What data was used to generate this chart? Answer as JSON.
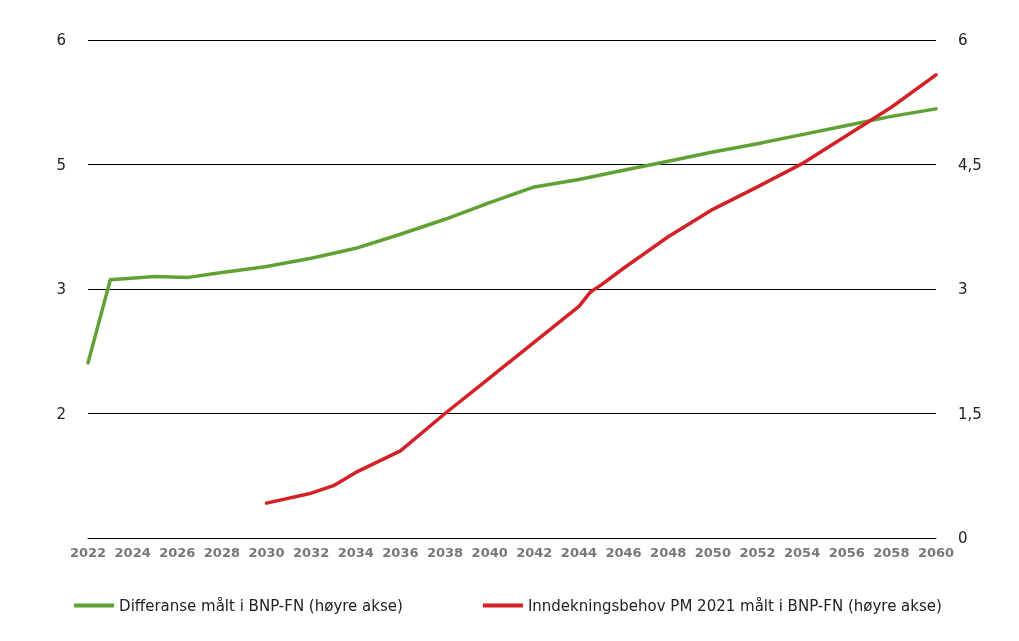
{
  "chart_data": {
    "type": "line",
    "xlim": [
      2022,
      2060
    ],
    "xticks": [
      2022,
      2024,
      2026,
      2028,
      2030,
      2032,
      2034,
      2036,
      2038,
      2040,
      2042,
      2044,
      2046,
      2048,
      2050,
      2052,
      2054,
      2056,
      2058,
      2060
    ],
    "ylim": [
      0,
      6
    ],
    "yticks": [
      {
        "value": 0,
        "label": null
      },
      {
        "value": 1.5,
        "label": "2"
      },
      {
        "value": 3,
        "label": "3"
      },
      {
        "value": 4.5,
        "label": "5"
      },
      {
        "value": 6,
        "label": "6"
      }
    ],
    "y2lim": [
      0,
      6
    ],
    "y2ticks": [
      {
        "value": 0,
        "label": "0"
      },
      {
        "value": 1.5,
        "label": "1,5"
      },
      {
        "value": 3,
        "label": "3"
      },
      {
        "value": 4.5,
        "label": "4,5"
      },
      {
        "value": 6,
        "label": "6"
      }
    ],
    "grid": "y",
    "legend": "bottom",
    "marker": "none",
    "line_style": "solid",
    "series": [
      {
        "name": "Differanse målt i BNP-FN (høyre akse)",
        "color": "#5fa132",
        "x": [
          2022,
          2023,
          2025,
          2026.5,
          2028,
          2030,
          2032,
          2034,
          2036,
          2038,
          2040,
          2042,
          2044,
          2046,
          2048,
          2050,
          2052,
          2054,
          2056,
          2058,
          2060
        ],
        "values": [
          2.11,
          3.11,
          3.15,
          3.14,
          3.2,
          3.27,
          3.37,
          3.49,
          3.66,
          3.84,
          4.04,
          4.23,
          4.32,
          4.43,
          4.54,
          4.65,
          4.75,
          4.86,
          4.97,
          5.08,
          5.17
        ]
      },
      {
        "name": "Inndekningsbehov PM 2021 målt i BNP-FN (høyre akse)",
        "color": "#d42027",
        "x": [
          2030,
          2032,
          2033,
          2034,
          2035,
          2036,
          2038,
          2040,
          2042,
          2044,
          2044.5,
          2045,
          2046,
          2048,
          2050,
          2052,
          2054,
          2056,
          2058,
          2060
        ],
        "values": [
          0.42,
          0.54,
          0.63,
          0.79,
          0.92,
          1.05,
          1.5,
          1.93,
          2.36,
          2.79,
          2.96,
          3.05,
          3.25,
          3.63,
          3.96,
          4.23,
          4.51,
          4.85,
          5.19,
          5.58
        ]
      }
    ]
  }
}
